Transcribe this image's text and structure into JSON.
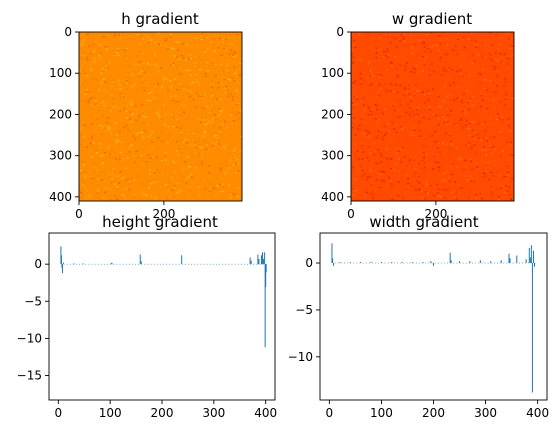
{
  "figure": {
    "background": "#ffffff"
  },
  "chart_data": [
    {
      "type": "heatmap",
      "title": "h gradient",
      "xlim": [
        0,
        384
      ],
      "ylim": [
        410,
        0
      ],
      "xticks": [
        {
          "v": 0,
          "label": "0"
        },
        {
          "v": 200,
          "label": "200"
        }
      ],
      "yticks": [
        {
          "v": 0,
          "label": "0"
        },
        {
          "v": 100,
          "label": "100"
        },
        {
          "v": 200,
          "label": "200"
        },
        {
          "v": 300,
          "label": "300"
        },
        {
          "v": 400,
          "label": "400"
        }
      ],
      "colormap": "hot",
      "base_color": "#ff8c00",
      "noise_colors": [
        "#ff7a00",
        "#ff9a08",
        "#ffa412",
        "#f06800",
        "#ffb020"
      ]
    },
    {
      "type": "heatmap",
      "title": "w gradient",
      "xlim": [
        0,
        384
      ],
      "ylim": [
        410,
        0
      ],
      "xticks": [
        {
          "v": 0,
          "label": "0"
        },
        {
          "v": 200,
          "label": "200"
        }
      ],
      "yticks": [
        {
          "v": 0,
          "label": "0"
        },
        {
          "v": 100,
          "label": "100"
        },
        {
          "v": 200,
          "label": "200"
        },
        {
          "v": 300,
          "label": "300"
        },
        {
          "v": 400,
          "label": "400"
        }
      ],
      "colormap": "hot",
      "base_color": "#ff4a00",
      "noise_colors": [
        "#ff3a00",
        "#ff5c08",
        "#ef3000",
        "#ff6a10",
        "#e82800"
      ]
    },
    {
      "type": "bar",
      "title": "height gradient",
      "xlim": [
        -18,
        418
      ],
      "ylim": [
        -18.3,
        4.2
      ],
      "xticks": [
        {
          "v": 0,
          "label": "0"
        },
        {
          "v": 100,
          "label": "100"
        },
        {
          "v": 200,
          "label": "200"
        },
        {
          "v": 300,
          "label": "300"
        },
        {
          "v": 400,
          "label": "400"
        }
      ],
      "yticks": [
        {
          "v": 0,
          "label": "0"
        },
        {
          "v": -5,
          "label": "−5"
        },
        {
          "v": -10,
          "label": "−10"
        },
        {
          "v": -15,
          "label": "−15"
        }
      ],
      "color": "#1f77b4",
      "x": [
        5,
        6,
        7,
        8,
        10,
        30,
        48,
        102,
        104,
        158,
        160,
        238,
        370,
        372,
        385,
        387,
        392,
        394,
        396,
        398,
        399,
        400,
        401
      ],
      "values": [
        2.4,
        1.2,
        -0.5,
        -1.2,
        0.2,
        0.1,
        0.1,
        0.2,
        0.1,
        1.3,
        0.4,
        1.2,
        0.9,
        0.5,
        1.3,
        0.7,
        1.2,
        1.6,
        0.7,
        1.6,
        -11.2,
        -3.1,
        -1.1
      ]
    },
    {
      "type": "bar",
      "title": "width gradient",
      "xlim": [
        -18,
        418
      ],
      "ylim": [
        -14.6,
        3.2
      ],
      "xticks": [
        {
          "v": 0,
          "label": "0"
        },
        {
          "v": 100,
          "label": "100"
        },
        {
          "v": 200,
          "label": "200"
        },
        {
          "v": 300,
          "label": "300"
        },
        {
          "v": 400,
          "label": "400"
        }
      ],
      "yticks": [
        {
          "v": 0,
          "label": "0"
        },
        {
          "v": -5,
          "label": "−5"
        },
        {
          "v": -10,
          "label": "−10"
        }
      ],
      "color": "#1f77b4",
      "x": [
        5,
        6,
        8,
        20,
        40,
        60,
        80,
        100,
        120,
        140,
        160,
        180,
        195,
        200,
        232,
        234,
        250,
        270,
        290,
        310,
        330,
        345,
        347,
        360,
        378,
        384,
        386,
        388,
        390,
        392,
        394
      ],
      "values": [
        2.1,
        0.5,
        -0.3,
        0.1,
        0.1,
        0.1,
        0.1,
        0.1,
        0.1,
        0.1,
        0.1,
        0.1,
        0.2,
        -0.3,
        1.1,
        0.3,
        0.2,
        0.2,
        0.3,
        0.2,
        0.3,
        1.0,
        0.5,
        0.8,
        0.4,
        1.6,
        0.6,
        1.9,
        -13.8,
        1.3,
        -0.4
      ]
    }
  ]
}
